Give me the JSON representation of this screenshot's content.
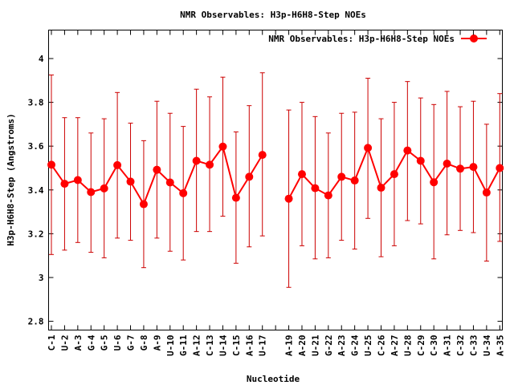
{
  "chart_data": {
    "type": "line",
    "title": "NMR Observables: H3p-H6H8-Step NOEs",
    "xlabel": "Nucleotide",
    "ylabel": "H3p-H6H8-Step (Angstroms)",
    "ylim": [
      2.76,
      4.13
    ],
    "yticks": [
      "2.8",
      "3",
      "3.2",
      "3.4",
      "3.6",
      "3.8",
      "4"
    ],
    "legend": {
      "label": "NMR Observables: H3p-H6H8-Step NOEs",
      "placement": "top-right"
    },
    "grid": false,
    "colors": {
      "series": "#ff0000",
      "errorbar": "#cc0000"
    },
    "categories": [
      "C-1",
      "U-2",
      "A-3",
      "G-4",
      "G-5",
      "U-6",
      "G-7",
      "G-8",
      "A-9",
      "U-10",
      "G-11",
      "A-12",
      "C-13",
      "U-14",
      "C-15",
      "A-16",
      "U-17",
      "",
      "A-19",
      "A-20",
      "U-21",
      "G-22",
      "A-23",
      "G-24",
      "U-25",
      "C-26",
      "A-27",
      "U-28",
      "C-29",
      "C-30",
      "A-31",
      "C-32",
      "C-33",
      "U-34",
      "A-35"
    ],
    "series": [
      {
        "values": [
          3.515,
          3.428,
          3.445,
          3.39,
          3.407,
          3.513,
          3.438,
          3.335,
          3.492,
          3.434,
          3.385,
          3.533,
          3.515,
          3.598,
          3.364,
          3.46,
          3.56,
          null,
          3.36,
          3.472,
          3.408,
          3.375,
          3.46,
          3.443,
          3.592,
          3.41,
          3.472,
          3.58,
          3.533,
          3.435,
          3.52,
          3.497,
          3.505,
          3.388,
          3.5
        ],
        "err_low": [
          3.105,
          3.125,
          3.16,
          3.115,
          3.09,
          3.18,
          3.17,
          3.045,
          3.18,
          3.12,
          3.08,
          3.21,
          3.21,
          3.28,
          3.065,
          3.14,
          3.19,
          null,
          2.955,
          3.145,
          3.085,
          3.09,
          3.17,
          3.13,
          3.27,
          3.095,
          3.145,
          3.26,
          3.245,
          3.085,
          3.195,
          3.215,
          3.205,
          3.075,
          3.165
        ],
        "err_high": [
          3.925,
          3.73,
          3.73,
          3.66,
          3.725,
          3.845,
          3.705,
          3.625,
          3.805,
          3.75,
          3.69,
          3.86,
          3.825,
          3.915,
          3.665,
          3.785,
          3.935,
          null,
          3.765,
          3.8,
          3.735,
          3.66,
          3.75,
          3.755,
          3.91,
          3.725,
          3.8,
          3.895,
          3.82,
          3.79,
          3.85,
          3.78,
          3.805,
          3.7,
          3.84
        ]
      }
    ]
  }
}
